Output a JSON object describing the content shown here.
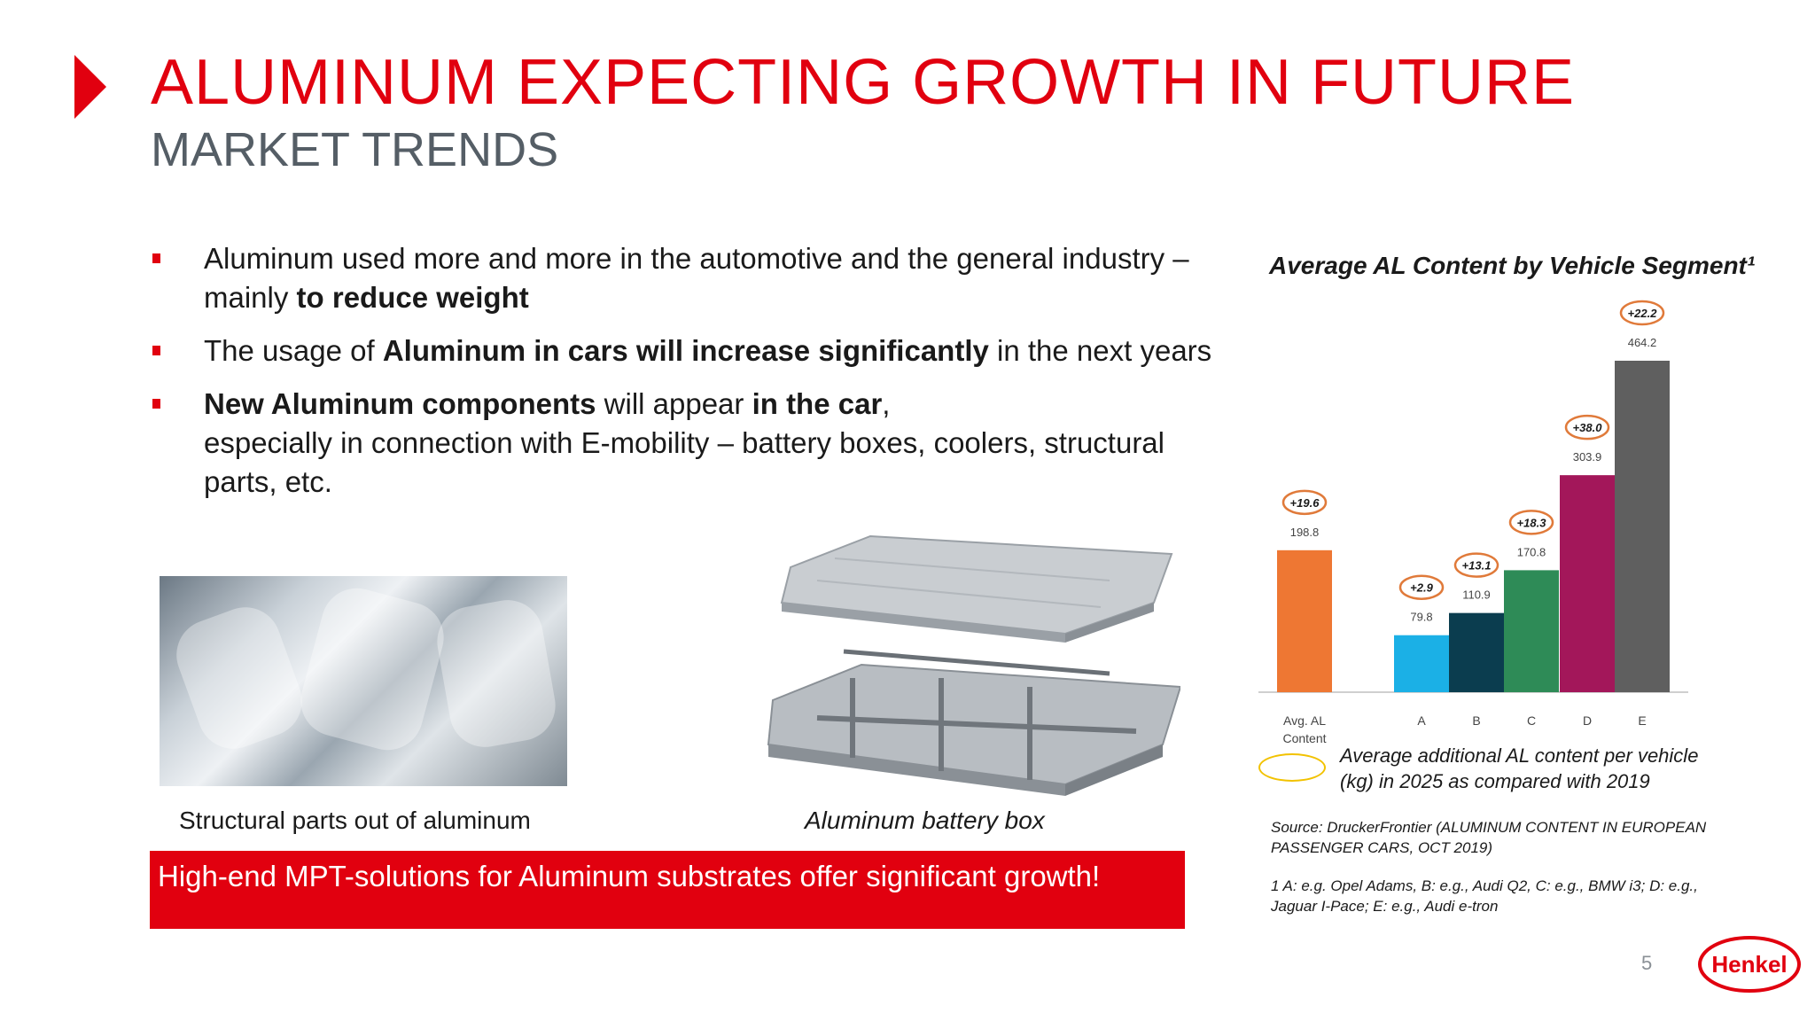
{
  "slide": {
    "title": "ALUMINUM EXPECTING GROWTH IN FUTURE",
    "subtitle": "MARKET TRENDS",
    "page_number": "5"
  },
  "bullets": [
    {
      "parts": [
        {
          "t": "Aluminum used more and more in the automotive and the general industry – mainly ",
          "b": false
        },
        {
          "t": "to reduce weight",
          "b": true
        }
      ]
    },
    {
      "parts": [
        {
          "t": "The usage of ",
          "b": false
        },
        {
          "t": "Aluminum in cars will increase significantly",
          "b": true
        },
        {
          "t": " in the next years",
          "b": false
        }
      ]
    },
    {
      "parts": [
        {
          "t": "New Aluminum components",
          "b": true
        },
        {
          "t": " will appear ",
          "b": false
        },
        {
          "t": "in the car",
          "b": true
        },
        {
          "t": ",\nespecially in connection with E-mobility – battery boxes, coolers, structural parts, etc.",
          "b": false
        }
      ]
    }
  ],
  "images": {
    "structural_caption": "Structural parts out of aluminum",
    "battery_caption": "Aluminum battery box"
  },
  "banner": {
    "text": "High-end MPT-solutions for Aluminum substrates offer significant growth!"
  },
  "chart_data": {
    "type": "bar",
    "title": "Average AL Content by Vehicle Segment¹",
    "categories": [
      "Avg. AL Content",
      "A",
      "B",
      "C",
      "D",
      "E"
    ],
    "values": [
      198.8,
      79.8,
      110.9,
      170.8,
      303.9,
      464.2
    ],
    "value_labels": [
      "198.8",
      "79.8",
      "110.9",
      "170.8",
      "303.9",
      "464.2"
    ],
    "increments": [
      "+19.6",
      "+2.9",
      "+13.1",
      "+18.3",
      "+38.0",
      "+22.2"
    ],
    "colors": [
      "#ee7733",
      "#1bb0e6",
      "#0b3d4f",
      "#2e8b57",
      "#a3175a",
      "#5f5f5f"
    ],
    "ylim": [
      0,
      500
    ],
    "grid": false,
    "legend": {
      "text": "Average additional AL content per vehicle (kg) in 2025 as compared with 2019",
      "marker_color": "#f2c200",
      "position": "bottom"
    }
  },
  "source": "Source: DruckerFrontier (ALUMINUM CONTENT IN EUROPEAN PASSENGER CARS, OCT 2019)",
  "footnote": "1 A: e.g. Opel Adams, B: e.g., Audi Q2, C: e.g., BMW i3; D: e.g., Jaguar I-Pace; E: e.g., Audi e-tron",
  "logo": {
    "text": "Henkel",
    "color": "#e1000f"
  },
  "colors": {
    "accent": "#e1000f",
    "subtitle": "#555e66"
  }
}
